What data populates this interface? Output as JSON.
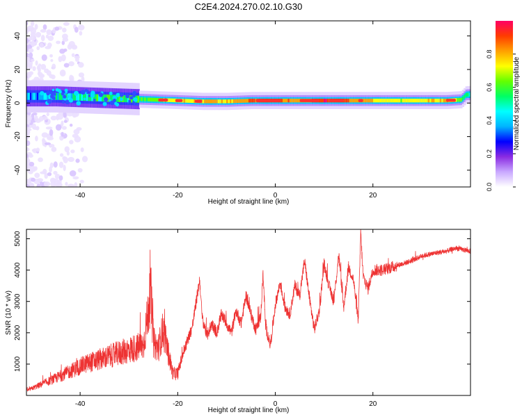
{
  "title": "C2E4.2024.270.02.10.G30",
  "chart_data": [
    {
      "type": "heatmap",
      "xlabel": "Height of straight line (km)",
      "ylabel": "Frequency (Hz)",
      "xlim": [
        -51,
        40
      ],
      "ylim": [
        -50,
        49
      ],
      "x_ticks": [
        "-40",
        "-20",
        "0",
        "20"
      ],
      "y_ticks": [
        "-40",
        "-20",
        "0",
        "20",
        "40"
      ],
      "colorbar": {
        "label": "Normalized spectral amplitude",
        "range": [
          0,
          1
        ],
        "ticks": [
          "0.0",
          "0.2",
          "0.4",
          "0.6",
          "0.8"
        ],
        "colors": [
          "#ffffff",
          "#c9a8ff",
          "#8a2be2",
          "#0000ff",
          "#00b4ff",
          "#00ffff",
          "#00ff64",
          "#64ff00",
          "#ffff00",
          "#ffa000",
          "#ff3c00",
          "#ff0064"
        ]
      },
      "band": {
        "center_hz": [
          [
            -51,
            4
          ],
          [
            -45,
            4
          ],
          [
            -40,
            3.5
          ],
          [
            -35,
            3
          ],
          [
            -30,
            2.5
          ],
          [
            -25,
            2
          ],
          [
            -20,
            1.5
          ],
          [
            -15,
            1
          ],
          [
            -10,
            1
          ],
          [
            -5,
            1.5
          ],
          [
            0,
            1.5
          ],
          [
            5,
            1.5
          ],
          [
            10,
            1.5
          ],
          [
            15,
            1.5
          ],
          [
            20,
            1.5
          ],
          [
            25,
            1.5
          ],
          [
            30,
            1.5
          ],
          [
            35,
            1.5
          ],
          [
            38,
            2
          ],
          [
            39,
            5
          ],
          [
            40,
            5
          ]
        ],
        "intensity": [
          [
            -51,
            0.35
          ],
          [
            -45,
            0.45
          ],
          [
            -40,
            0.5
          ],
          [
            -35,
            0.55
          ],
          [
            -30,
            0.55
          ],
          [
            -25,
            0.65
          ],
          [
            -20,
            0.75
          ],
          [
            -15,
            0.8
          ],
          [
            -10,
            0.75
          ],
          [
            -5,
            0.85
          ],
          [
            0,
            0.9
          ],
          [
            5,
            0.8
          ],
          [
            10,
            0.95
          ],
          [
            15,
            0.85
          ],
          [
            20,
            0.75
          ],
          [
            25,
            0.7
          ],
          [
            30,
            0.75
          ],
          [
            35,
            0.8
          ],
          [
            38,
            0.6
          ],
          [
            40,
            0.5
          ]
        ]
      }
    },
    {
      "type": "line",
      "xlabel": "Height of straight line (km)",
      "ylabel": "SNR (10 * v/v)",
      "xlim": [
        -51,
        40
      ],
      "ylim": [
        0,
        5300
      ],
      "x_ticks": [
        "-40",
        "-20",
        "0",
        "20"
      ],
      "y_ticks": [
        "1000",
        "2000",
        "3000",
        "4000",
        "5000"
      ],
      "color": "#ee3333",
      "series": [
        {
          "x": [
            -51,
            -48,
            -45,
            -43,
            -41,
            -39,
            -37,
            -35,
            -33,
            -31,
            -29,
            -27,
            -25.5,
            -25,
            -24,
            -23,
            -22,
            -21,
            -20,
            -19,
            -17,
            -16,
            -15.5,
            -15,
            -14,
            -13,
            -12,
            -11,
            -10,
            -9,
            -8,
            -7,
            -6,
            -5,
            -4,
            -3,
            -2.5,
            -2,
            -1,
            0,
            1,
            2,
            3,
            4,
            5,
            6,
            7,
            8,
            9,
            10,
            11,
            12,
            13,
            14,
            15,
            16,
            17,
            17.5,
            18,
            19,
            20,
            22,
            25,
            28,
            30,
            33,
            35,
            37,
            40
          ],
          "y": [
            150,
            350,
            550,
            700,
            850,
            1000,
            1100,
            1200,
            1300,
            1400,
            1500,
            1600,
            3300,
            1700,
            1500,
            2100,
            1400,
            700,
            700,
            1300,
            2200,
            3200,
            3700,
            2500,
            1900,
            2300,
            2000,
            2600,
            2300,
            2000,
            2700,
            2300,
            3200,
            2600,
            2100,
            2500,
            3900,
            2200,
            1600,
            2900,
            3600,
            2800,
            2600,
            3500,
            3200,
            4300,
            3100,
            2100,
            2700,
            4200,
            3500,
            3000,
            4500,
            2800,
            4100,
            3700,
            2400,
            5200,
            3800,
            3400,
            4000,
            4000,
            4150,
            4300,
            4450,
            4550,
            4600,
            4700,
            4600
          ]
        }
      ]
    }
  ]
}
